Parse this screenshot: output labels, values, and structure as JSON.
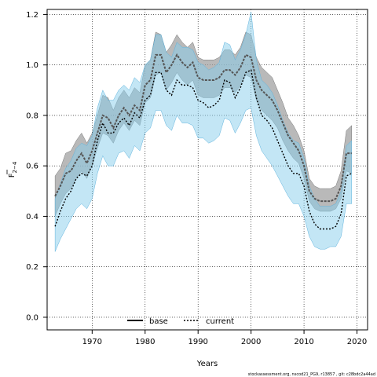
{
  "chart_data": {
    "type": "line",
    "xlabel": "Years",
    "ylabel_main": "F",
    "ylabel_sub": "2−4",
    "xlim": [
      1961.5,
      2022
    ],
    "ylim": [
      -0.05,
      1.22
    ],
    "xticks": [
      1970,
      1980,
      1990,
      2000,
      2010,
      2020
    ],
    "yticks": [
      0.0,
      0.2,
      0.4,
      0.6,
      0.8,
      1.0,
      1.2
    ],
    "xtick_labels": [
      "1970",
      "1980",
      "1990",
      "2000",
      "2010",
      "2020"
    ],
    "ytick_labels": [
      "0.0",
      "0.2",
      "0.4",
      "0.6",
      "0.8",
      "1.0",
      "1.2"
    ],
    "grid": true,
    "legend_position": "bottom-center",
    "footer": "stockassessment.org, nscod21_PG9, r13857 , git: c28bdc2a44ad",
    "x": [
      1963,
      1964,
      1965,
      1966,
      1967,
      1968,
      1969,
      1970,
      1971,
      1972,
      1973,
      1974,
      1975,
      1976,
      1977,
      1978,
      1979,
      1980,
      1981,
      1982,
      1983,
      1984,
      1985,
      1986,
      1987,
      1988,
      1989,
      1990,
      1991,
      1992,
      1993,
      1994,
      1995,
      1996,
      1997,
      1998,
      1999,
      2000,
      2001,
      2002,
      2003,
      2004,
      2005,
      2006,
      2007,
      2008,
      2009,
      2010,
      2011,
      2012,
      2013,
      2014,
      2015,
      2016,
      2017,
      2018,
      2019
    ],
    "series": [
      {
        "name": "base",
        "color": "#555555",
        "band_color": "#9b9b9b",
        "values": [
          0.48,
          0.52,
          0.57,
          0.58,
          0.62,
          0.65,
          0.61,
          0.66,
          0.73,
          0.8,
          0.79,
          0.75,
          0.8,
          0.83,
          0.8,
          0.84,
          0.82,
          0.92,
          0.94,
          1.04,
          1.04,
          0.97,
          1.0,
          1.04,
          1.01,
          0.99,
          1.01,
          0.95,
          0.94,
          0.94,
          0.94,
          0.95,
          0.98,
          0.98,
          0.96,
          0.99,
          1.04,
          1.03,
          0.94,
          0.9,
          0.88,
          0.86,
          0.82,
          0.77,
          0.72,
          0.69,
          0.66,
          0.6,
          0.5,
          0.47,
          0.46,
          0.46,
          0.46,
          0.47,
          0.52,
          0.65,
          0.65
        ],
        "lower": [
          0.4,
          0.45,
          0.49,
          0.51,
          0.55,
          0.58,
          0.55,
          0.6,
          0.67,
          0.73,
          0.72,
          0.69,
          0.74,
          0.77,
          0.74,
          0.78,
          0.76,
          0.85,
          0.87,
          0.96,
          0.97,
          0.9,
          0.93,
          0.97,
          0.94,
          0.92,
          0.94,
          0.88,
          0.87,
          0.87,
          0.87,
          0.88,
          0.91,
          0.91,
          0.89,
          0.92,
          0.96,
          0.95,
          0.86,
          0.82,
          0.8,
          0.78,
          0.75,
          0.7,
          0.66,
          0.63,
          0.61,
          0.55,
          0.46,
          0.43,
          0.42,
          0.42,
          0.42,
          0.43,
          0.47,
          0.58,
          0.57
        ],
        "upper": [
          0.56,
          0.59,
          0.65,
          0.66,
          0.7,
          0.73,
          0.69,
          0.73,
          0.8,
          0.88,
          0.87,
          0.82,
          0.87,
          0.9,
          0.87,
          0.91,
          0.89,
          1.0,
          1.02,
          1.13,
          1.12,
          1.05,
          1.08,
          1.12,
          1.09,
          1.07,
          1.09,
          1.03,
          1.02,
          1.02,
          1.02,
          1.03,
          1.06,
          1.06,
          1.04,
          1.07,
          1.13,
          1.12,
          1.03,
          0.99,
          0.97,
          0.95,
          0.9,
          0.85,
          0.79,
          0.76,
          0.72,
          0.66,
          0.55,
          0.52,
          0.51,
          0.51,
          0.51,
          0.52,
          0.58,
          0.74,
          0.76
        ]
      },
      {
        "name": "current",
        "color": "#000000",
        "band_color": "#87ceeb",
        "values": [
          0.36,
          0.42,
          0.47,
          0.5,
          0.55,
          0.57,
          0.56,
          0.6,
          0.7,
          0.77,
          0.73,
          0.73,
          0.77,
          0.79,
          0.76,
          0.81,
          0.79,
          0.86,
          0.88,
          0.97,
          0.97,
          0.9,
          0.88,
          0.94,
          0.92,
          0.92,
          0.91,
          0.86,
          0.85,
          0.83,
          0.84,
          0.86,
          0.94,
          0.93,
          0.87,
          0.91,
          0.97,
          0.98,
          0.87,
          0.8,
          0.78,
          0.75,
          0.7,
          0.65,
          0.6,
          0.57,
          0.57,
          0.52,
          0.42,
          0.37,
          0.35,
          0.35,
          0.35,
          0.36,
          0.41,
          0.56,
          0.57
        ],
        "lower": [
          0.26,
          0.31,
          0.35,
          0.39,
          0.43,
          0.45,
          0.43,
          0.47,
          0.57,
          0.64,
          0.6,
          0.6,
          0.65,
          0.66,
          0.63,
          0.68,
          0.66,
          0.73,
          0.75,
          0.82,
          0.82,
          0.76,
          0.74,
          0.8,
          0.77,
          0.77,
          0.76,
          0.71,
          0.71,
          0.69,
          0.7,
          0.72,
          0.79,
          0.78,
          0.73,
          0.77,
          0.82,
          0.83,
          0.72,
          0.66,
          0.63,
          0.6,
          0.56,
          0.52,
          0.48,
          0.45,
          0.45,
          0.4,
          0.32,
          0.28,
          0.27,
          0.27,
          0.28,
          0.28,
          0.32,
          0.45,
          0.45
        ],
        "upper": [
          0.47,
          0.53,
          0.59,
          0.62,
          0.67,
          0.69,
          0.68,
          0.72,
          0.83,
          0.9,
          0.86,
          0.86,
          0.9,
          0.92,
          0.9,
          0.95,
          0.93,
          1.0,
          1.02,
          1.12,
          1.12,
          1.05,
          1.03,
          1.09,
          1.07,
          1.07,
          1.06,
          1.01,
          1.0,
          0.98,
          0.99,
          1.01,
          1.09,
          1.08,
          1.02,
          1.06,
          1.12,
          1.21,
          1.02,
          0.94,
          0.92,
          0.89,
          0.84,
          0.78,
          0.73,
          0.7,
          0.69,
          0.63,
          0.52,
          0.47,
          0.44,
          0.44,
          0.44,
          0.45,
          0.5,
          0.68,
          0.7
        ]
      }
    ]
  }
}
